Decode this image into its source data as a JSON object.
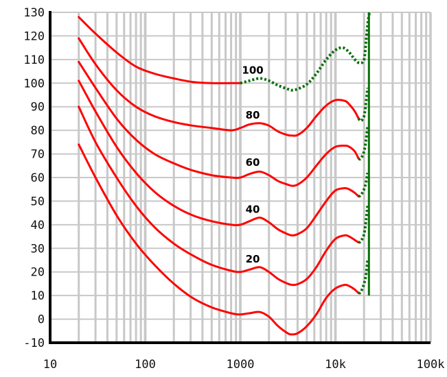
{
  "chart_data": {
    "type": "line",
    "title": "",
    "xlabel": "",
    "ylabel": "",
    "x_scale": "log",
    "xlim": [
      10,
      100000
    ],
    "ylim": [
      -10,
      130
    ],
    "grid": true,
    "x_ticks": [
      10,
      100,
      1000,
      10000,
      100000
    ],
    "x_tick_labels": [
      "10",
      "100",
      "1000",
      "10k",
      "100k"
    ],
    "y_ticks": [
      -10,
      0,
      10,
      20,
      30,
      40,
      50,
      60,
      70,
      80,
      90,
      100,
      110,
      120,
      130
    ],
    "y_tick_labels": [
      "-10",
      "0",
      "10",
      "20",
      "30",
      "40",
      "50",
      "60",
      "70",
      "80",
      "90",
      "100",
      "110",
      "120",
      "130"
    ],
    "colors": {
      "measured": "#ff0000",
      "extrapolated": "#0a6e0a",
      "grid": "#c8c8c8",
      "axis": "#000000"
    },
    "series": [
      {
        "label": "",
        "solid": [
          [
            20,
            74
          ],
          [
            30,
            60
          ],
          [
            50,
            44
          ],
          [
            80,
            32
          ],
          [
            125,
            23
          ],
          [
            200,
            15
          ],
          [
            315,
            9
          ],
          [
            500,
            5
          ],
          [
            800,
            2.5
          ],
          [
            1000,
            2
          ],
          [
            1250,
            2.5
          ],
          [
            1600,
            3
          ],
          [
            2000,
            1
          ],
          [
            2500,
            -3
          ],
          [
            3150,
            -6
          ],
          [
            3500,
            -6.5
          ],
          [
            4000,
            -6
          ],
          [
            5000,
            -3
          ],
          [
            6300,
            2
          ],
          [
            8000,
            9
          ],
          [
            10000,
            13
          ],
          [
            12500,
            14.5
          ],
          [
            14000,
            14
          ],
          [
            16000,
            12.5
          ],
          [
            17500,
            11
          ]
        ],
        "dotted": [
          [
            17500,
            11
          ],
          [
            18500,
            11.5
          ],
          [
            20000,
            15
          ],
          [
            21000,
            19
          ],
          [
            21800,
            25
          ]
        ]
      },
      {
        "label": "20",
        "solid": [
          [
            20,
            90
          ],
          [
            30,
            75
          ],
          [
            50,
            60
          ],
          [
            80,
            48
          ],
          [
            125,
            39
          ],
          [
            200,
            32
          ],
          [
            315,
            27
          ],
          [
            500,
            23
          ],
          [
            800,
            20.5
          ],
          [
            1000,
            20
          ],
          [
            1250,
            21
          ],
          [
            1600,
            22
          ],
          [
            2000,
            20
          ],
          [
            2500,
            17
          ],
          [
            3150,
            15
          ],
          [
            3500,
            14.5
          ],
          [
            4000,
            14.8
          ],
          [
            5000,
            17
          ],
          [
            6300,
            22
          ],
          [
            8000,
            29
          ],
          [
            10000,
            34
          ],
          [
            12500,
            35.5
          ],
          [
            14000,
            35
          ],
          [
            16000,
            33.5
          ],
          [
            17500,
            32.5
          ]
        ],
        "dotted": [
          [
            17500,
            32.5
          ],
          [
            18500,
            33
          ],
          [
            20000,
            36
          ],
          [
            21000,
            42
          ],
          [
            21800,
            48
          ]
        ]
      },
      {
        "label": "40",
        "solid": [
          [
            20,
            101
          ],
          [
            30,
            88
          ],
          [
            50,
            73
          ],
          [
            80,
            62
          ],
          [
            125,
            54
          ],
          [
            200,
            48
          ],
          [
            315,
            44
          ],
          [
            500,
            41.5
          ],
          [
            800,
            40
          ],
          [
            1000,
            40
          ],
          [
            1250,
            41.5
          ],
          [
            1600,
            43
          ],
          [
            2000,
            41
          ],
          [
            2500,
            38
          ],
          [
            3150,
            36
          ],
          [
            3500,
            35.5
          ],
          [
            4000,
            36
          ],
          [
            5000,
            38.5
          ],
          [
            6300,
            44
          ],
          [
            8000,
            50
          ],
          [
            10000,
            54.5
          ],
          [
            12500,
            55.5
          ],
          [
            14000,
            55
          ],
          [
            16000,
            53.5
          ],
          [
            17500,
            52
          ]
        ],
        "dotted": [
          [
            17500,
            52
          ],
          [
            18500,
            52.5
          ],
          [
            20000,
            55
          ],
          [
            21000,
            58
          ],
          [
            21800,
            62
          ]
        ]
      },
      {
        "label": "60",
        "solid": [
          [
            20,
            109
          ],
          [
            30,
            98
          ],
          [
            50,
            85
          ],
          [
            80,
            76
          ],
          [
            125,
            70
          ],
          [
            200,
            66
          ],
          [
            315,
            63
          ],
          [
            500,
            61
          ],
          [
            800,
            60
          ],
          [
            1000,
            60
          ],
          [
            1250,
            61.5
          ],
          [
            1600,
            62.5
          ],
          [
            2000,
            61
          ],
          [
            2500,
            58.5
          ],
          [
            3150,
            57
          ],
          [
            3500,
            56.5
          ],
          [
            4000,
            57
          ],
          [
            5000,
            60
          ],
          [
            6300,
            65
          ],
          [
            8000,
            70
          ],
          [
            10000,
            73
          ],
          [
            12500,
            73.5
          ],
          [
            14000,
            73
          ],
          [
            16000,
            71
          ],
          [
            17500,
            68
          ]
        ],
        "dotted": [
          [
            17500,
            68
          ],
          [
            18500,
            68
          ],
          [
            20000,
            71
          ],
          [
            21000,
            76
          ],
          [
            21800,
            82
          ]
        ]
      },
      {
        "label": "80",
        "solid": [
          [
            20,
            119
          ],
          [
            30,
            108
          ],
          [
            50,
            97
          ],
          [
            80,
            90
          ],
          [
            125,
            86
          ],
          [
            200,
            83.5
          ],
          [
            315,
            82
          ],
          [
            500,
            81
          ],
          [
            800,
            80
          ],
          [
            1000,
            81
          ],
          [
            1250,
            82.5
          ],
          [
            1600,
            83
          ],
          [
            2000,
            82
          ],
          [
            2500,
            79.5
          ],
          [
            3150,
            78
          ],
          [
            3500,
            77.8
          ],
          [
            4000,
            78
          ],
          [
            5000,
            81
          ],
          [
            6300,
            86
          ],
          [
            8000,
            90.5
          ],
          [
            10000,
            92.8
          ],
          [
            12500,
            92.5
          ],
          [
            14000,
            91
          ],
          [
            16000,
            88
          ],
          [
            17500,
            85
          ]
        ],
        "dotted": [
          [
            17500,
            85
          ],
          [
            18500,
            84
          ],
          [
            20000,
            86
          ],
          [
            21000,
            92
          ],
          [
            21800,
            98
          ]
        ]
      },
      {
        "label": "100",
        "solid": [
          [
            20,
            128
          ],
          [
            30,
            121
          ],
          [
            50,
            113
          ],
          [
            80,
            107
          ],
          [
            125,
            104
          ],
          [
            200,
            102
          ],
          [
            315,
            100.5
          ],
          [
            500,
            100
          ],
          [
            800,
            100
          ],
          [
            1000,
            100
          ]
        ],
        "dotted": [
          [
            1000,
            100
          ],
          [
            1250,
            101
          ],
          [
            1600,
            102
          ],
          [
            2000,
            101
          ],
          [
            2500,
            99
          ],
          [
            3150,
            97.5
          ],
          [
            3500,
            97
          ],
          [
            4000,
            97.5
          ],
          [
            5000,
            99.5
          ],
          [
            6300,
            104
          ],
          [
            8000,
            110
          ],
          [
            10000,
            114
          ],
          [
            12000,
            115
          ],
          [
            14000,
            113
          ],
          [
            16000,
            110
          ],
          [
            18000,
            108.5
          ],
          [
            20000,
            110
          ],
          [
            21000,
            118
          ],
          [
            22000,
            126
          ],
          [
            22800,
            130
          ]
        ]
      }
    ],
    "label_points": [
      {
        "text": "20",
        "x": 1350,
        "y": 24
      },
      {
        "text": "40",
        "x": 1350,
        "y": 45
      },
      {
        "text": "60",
        "x": 1350,
        "y": 65
      },
      {
        "text": "80",
        "x": 1350,
        "y": 85
      },
      {
        "text": "100",
        "x": 1350,
        "y": 104
      }
    ],
    "vertical_line": {
      "x": 22500,
      "y_from": 10,
      "y_to": 130
    }
  }
}
